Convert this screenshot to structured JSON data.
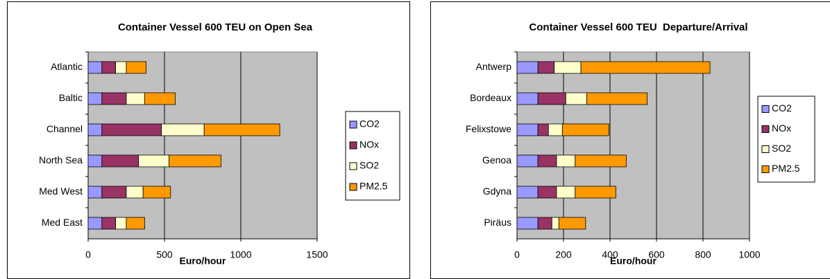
{
  "chart_data": [
    {
      "type": "bar",
      "orientation": "horizontal",
      "stacked": true,
      "title": "Container Vessel 600 TEU on Open Sea",
      "xlabel": "Euro/hour",
      "categories": [
        "Atlantic",
        "Baltic",
        "Channel",
        "North Sea",
        "Med West",
        "Med East"
      ],
      "series": [
        {
          "name": "CO2",
          "color": "#9999ff",
          "values": [
            90,
            90,
            90,
            90,
            90,
            90
          ]
        },
        {
          "name": "NOx",
          "color": "#993366",
          "values": [
            90,
            160,
            390,
            240,
            160,
            90
          ]
        },
        {
          "name": "SO2",
          "color": "#ffffcc",
          "values": [
            70,
            120,
            280,
            200,
            110,
            70
          ]
        },
        {
          "name": "PM2.5",
          "color": "#ff9900",
          "values": [
            130,
            200,
            495,
            340,
            180,
            120
          ]
        }
      ],
      "xlim": [
        0,
        1500
      ],
      "xticks": [
        0,
        500,
        1000,
        1500
      ],
      "grid": true,
      "legend": "right"
    },
    {
      "type": "bar",
      "orientation": "horizontal",
      "stacked": true,
      "title": "Container Vessel 600 TEU  Departure/Arrival",
      "xlabel": "Euro/hour",
      "categories": [
        "Antwerp",
        "Bordeaux",
        "Felixstowe",
        "Genoa",
        "Gdyna",
        "Piräus"
      ],
      "series": [
        {
          "name": "CO2",
          "color": "#9999ff",
          "values": [
            90,
            90,
            90,
            90,
            90,
            90
          ]
        },
        {
          "name": "NOx",
          "color": "#993366",
          "values": [
            70,
            120,
            45,
            80,
            80,
            60
          ]
        },
        {
          "name": "SO2",
          "color": "#ffffcc",
          "values": [
            115,
            90,
            60,
            80,
            80,
            30
          ]
        },
        {
          "name": "PM2.5",
          "color": "#ff9900",
          "values": [
            555,
            260,
            200,
            220,
            175,
            115
          ]
        }
      ],
      "xlim": [
        0,
        1000
      ],
      "xticks": [
        0,
        200,
        400,
        600,
        800,
        1000
      ],
      "grid": true,
      "legend": "right"
    }
  ]
}
